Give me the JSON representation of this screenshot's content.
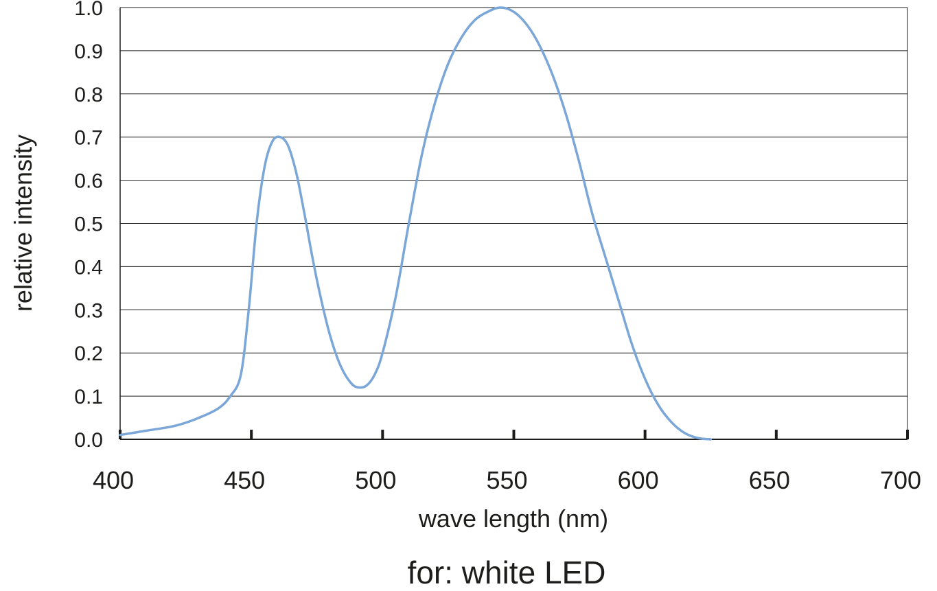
{
  "chart_data": {
    "type": "line",
    "title": "",
    "caption": "for: white LED",
    "xlabel": "wave length (nm)",
    "ylabel": "relative intensity",
    "xlim": [
      400,
      700
    ],
    "ylim": [
      0,
      1.0
    ],
    "x_ticks": [
      "400",
      "450",
      "500",
      "550",
      "600",
      "650",
      "700"
    ],
    "y_ticks": [
      "0.0",
      "0.1",
      "0.2",
      "0.3",
      "0.4",
      "0.5",
      "0.6",
      "0.7",
      "0.8",
      "0.9",
      "1.0"
    ],
    "grid": true,
    "series_color": "#7aa6d8",
    "series": [
      {
        "x": [
          400,
          410,
          420,
          428,
          437,
          442,
          446,
          449,
          452,
          455,
          458,
          461,
          464,
          467,
          470,
          473,
          476,
          480,
          484,
          488,
          491,
          494,
          497,
          500,
          505,
          510,
          515,
          520,
          525,
          530,
          535,
          540,
          545,
          550,
          555,
          560,
          565,
          570,
          575,
          580,
          585,
          590,
          595,
          600,
          605,
          610,
          615,
          620,
          625
        ],
        "y": [
          0.01,
          0.02,
          0.03,
          0.045,
          0.07,
          0.1,
          0.15,
          0.3,
          0.5,
          0.63,
          0.69,
          0.7,
          0.68,
          0.62,
          0.53,
          0.43,
          0.34,
          0.24,
          0.17,
          0.13,
          0.12,
          0.125,
          0.15,
          0.2,
          0.33,
          0.5,
          0.66,
          0.78,
          0.87,
          0.93,
          0.97,
          0.99,
          1.0,
          0.99,
          0.96,
          0.91,
          0.84,
          0.75,
          0.64,
          0.52,
          0.42,
          0.32,
          0.22,
          0.14,
          0.08,
          0.04,
          0.015,
          0.003,
          0.0
        ]
      }
    ]
  }
}
